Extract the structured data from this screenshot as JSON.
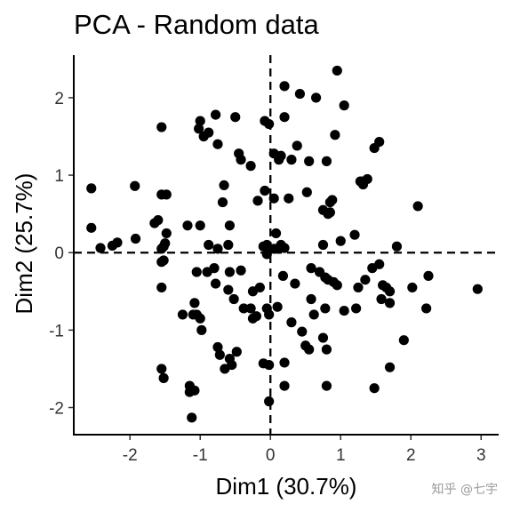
{
  "watermark": "知乎 @七宇",
  "chart_data": {
    "type": "scatter",
    "title": "PCA - Random data",
    "xlabel": "Dim1 (30.7%)",
    "ylabel": "Dim2 (25.7%)",
    "xlim": [
      -2.8,
      3.25
    ],
    "ylim": [
      -2.35,
      2.55
    ],
    "xticks": [
      -2,
      -1,
      0,
      1,
      2,
      3
    ],
    "yticks": [
      -2,
      -1,
      0,
      1,
      2
    ],
    "grid": false,
    "reference_lines": {
      "x": 0,
      "y": 0,
      "style": "dashed"
    },
    "points": [
      [
        0.95,
        2.35
      ],
      [
        0.2,
        2.15
      ],
      [
        0.42,
        2.05
      ],
      [
        0.65,
        2.0
      ],
      [
        1.05,
        1.9
      ],
      [
        -1.0,
        1.7
      ],
      [
        -0.78,
        1.78
      ],
      [
        -0.5,
        1.75
      ],
      [
        -1.02,
        1.6
      ],
      [
        -0.88,
        1.55
      ],
      [
        -0.95,
        1.5
      ],
      [
        -1.55,
        1.62
      ],
      [
        -0.08,
        1.7
      ],
      [
        -0.02,
        1.66
      ],
      [
        0.2,
        1.75
      ],
      [
        0.92,
        1.52
      ],
      [
        1.55,
        1.43
      ],
      [
        1.48,
        1.35
      ],
      [
        0.38,
        1.38
      ],
      [
        0.05,
        1.28
      ],
      [
        -0.75,
        1.4
      ],
      [
        -0.45,
        1.28
      ],
      [
        -0.42,
        1.2
      ],
      [
        -0.28,
        1.12
      ],
      [
        0.12,
        1.2
      ],
      [
        0.15,
        1.25
      ],
      [
        0.3,
        1.2
      ],
      [
        0.55,
        1.18
      ],
      [
        0.8,
        1.18
      ],
      [
        1.3,
        0.92
      ],
      [
        1.32,
        0.88
      ],
      [
        1.38,
        0.95
      ],
      [
        1.28,
        0.92
      ],
      [
        -2.55,
        0.83
      ],
      [
        -1.93,
        0.86
      ],
      [
        -1.55,
        0.75
      ],
      [
        -1.48,
        0.75
      ],
      [
        -0.08,
        0.8
      ],
      [
        0.05,
        0.7
      ],
      [
        0.26,
        0.7
      ],
      [
        0.52,
        0.78
      ],
      [
        0.85,
        0.65
      ],
      [
        0.88,
        0.68
      ],
      [
        -0.66,
        0.87
      ],
      [
        -0.68,
        0.65
      ],
      [
        -0.18,
        0.67
      ],
      [
        0.75,
        0.55
      ],
      [
        0.82,
        0.5
      ],
      [
        0.85,
        0.52
      ],
      [
        2.1,
        0.6
      ],
      [
        -1.92,
        0.18
      ],
      [
        -2.55,
        0.32
      ],
      [
        -2.42,
        0.06
      ],
      [
        -2.25,
        0.09
      ],
      [
        -2.18,
        0.13
      ],
      [
        -1.65,
        0.38
      ],
      [
        -1.6,
        0.42
      ],
      [
        -1.48,
        0.25
      ],
      [
        -1.5,
        0.12
      ],
      [
        -1.52,
        0.08
      ],
      [
        -1.55,
        0.05
      ],
      [
        -1.18,
        0.35
      ],
      [
        -1.0,
        0.35
      ],
      [
        -0.58,
        0.35
      ],
      [
        -0.88,
        0.1
      ],
      [
        -0.6,
        0.1
      ],
      [
        -0.75,
        0.05
      ],
      [
        -0.1,
        0.08
      ],
      [
        -0.05,
        0.1
      ],
      [
        0.08,
        0.25
      ],
      [
        0.12,
        0.05
      ],
      [
        0.15,
        0.1
      ],
      [
        0.2,
        0.06
      ],
      [
        0.05,
        0.05
      ],
      [
        0.75,
        0.1
      ],
      [
        1.0,
        0.15
      ],
      [
        1.2,
        0.23
      ],
      [
        1.8,
        0.08
      ],
      [
        -1.52,
        -0.1
      ],
      [
        -1.55,
        -0.12
      ],
      [
        -0.05,
        -0.02
      ],
      [
        -1.05,
        -0.25
      ],
      [
        -0.9,
        -0.25
      ],
      [
        -0.8,
        -0.2
      ],
      [
        -0.42,
        -0.23
      ],
      [
        -0.58,
        -0.25
      ],
      [
        -1.55,
        -0.45
      ],
      [
        -0.78,
        -0.4
      ],
      [
        -0.6,
        -0.48
      ],
      [
        -0.25,
        -0.5
      ],
      [
        -0.15,
        -0.45
      ],
      [
        0.18,
        -0.3
      ],
      [
        0.35,
        -0.4
      ],
      [
        0.58,
        -0.2
      ],
      [
        0.7,
        -0.25
      ],
      [
        0.78,
        -0.32
      ],
      [
        0.82,
        -0.35
      ],
      [
        0.9,
        -0.38
      ],
      [
        0.95,
        -0.42
      ],
      [
        1.25,
        -0.45
      ],
      [
        1.35,
        -0.35
      ],
      [
        1.45,
        -0.2
      ],
      [
        1.55,
        -0.15
      ],
      [
        1.6,
        -0.42
      ],
      [
        1.7,
        -0.5
      ],
      [
        1.65,
        -0.45
      ],
      [
        1.58,
        -0.6
      ],
      [
        2.02,
        -0.45
      ],
      [
        2.25,
        -0.3
      ],
      [
        2.95,
        -0.47
      ],
      [
        -1.25,
        -0.8
      ],
      [
        -1.05,
        -0.8
      ],
      [
        -1.1,
        -0.8
      ],
      [
        -1.0,
        -0.85
      ],
      [
        -1.08,
        -0.65
      ],
      [
        -0.52,
        -0.6
      ],
      [
        -0.38,
        -0.72
      ],
      [
        -0.28,
        -0.72
      ],
      [
        -0.05,
        -0.72
      ],
      [
        -0.02,
        -0.8
      ],
      [
        0.1,
        -0.7
      ],
      [
        -0.2,
        -0.82
      ],
      [
        -0.25,
        -0.85
      ],
      [
        0.3,
        -0.9
      ],
      [
        0.45,
        -1.02
      ],
      [
        0.58,
        -0.6
      ],
      [
        0.78,
        -0.72
      ],
      [
        0.62,
        -0.8
      ],
      [
        0.75,
        -1.1
      ],
      [
        1.05,
        -0.75
      ],
      [
        1.22,
        -0.72
      ],
      [
        1.7,
        -0.65
      ],
      [
        2.22,
        -0.72
      ],
      [
        -0.98,
        -1.0
      ],
      [
        -0.75,
        -1.22
      ],
      [
        -0.48,
        -1.28
      ],
      [
        -0.58,
        -1.37
      ],
      [
        -0.72,
        -1.32
      ],
      [
        -0.55,
        -1.45
      ],
      [
        -0.65,
        -1.5
      ],
      [
        0.5,
        -1.2
      ],
      [
        0.55,
        -1.25
      ],
      [
        0.8,
        -1.25
      ],
      [
        1.9,
        -1.13
      ],
      [
        -0.1,
        -1.43
      ],
      [
        -0.02,
        -1.45
      ],
      [
        0.2,
        -1.42
      ],
      [
        -1.55,
        -1.5
      ],
      [
        -1.52,
        -1.62
      ],
      [
        -1.15,
        -1.72
      ],
      [
        -1.08,
        -1.78
      ],
      [
        -1.15,
        -1.8
      ],
      [
        0.2,
        -1.72
      ],
      [
        0.8,
        -1.72
      ],
      [
        1.48,
        -1.75
      ],
      [
        1.7,
        -1.48
      ],
      [
        -1.12,
        -2.13
      ],
      [
        -0.02,
        -1.92
      ]
    ]
  }
}
